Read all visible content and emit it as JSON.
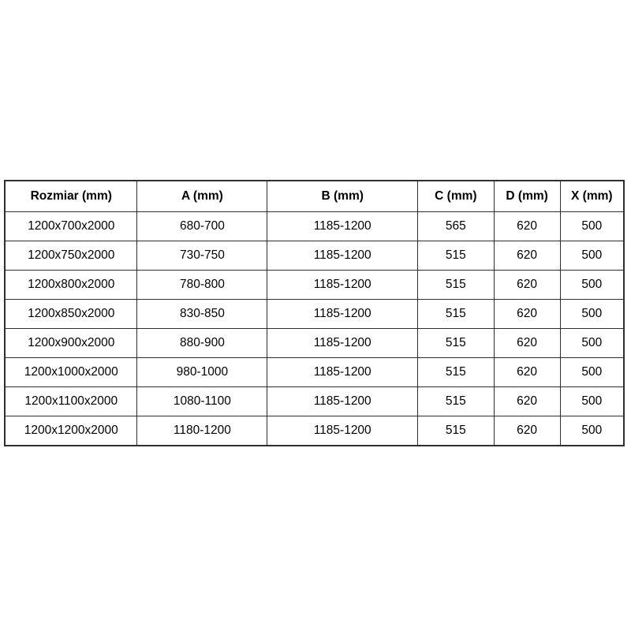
{
  "page": {
    "background_color": "#ffffff",
    "border_color": "#2f2f2f",
    "text_color": "#000000"
  },
  "table": {
    "headers": [
      "Rozmiar (mm)",
      "A (mm)",
      "B (mm)",
      "C (mm)",
      "D (mm)",
      "X (mm)"
    ],
    "rows": [
      [
        "1200x700x2000",
        "680-700",
        "1185-1200",
        "565",
        "620",
        "500"
      ],
      [
        "1200x750x2000",
        "730-750",
        "1185-1200",
        "515",
        "620",
        "500"
      ],
      [
        "1200x800x2000",
        "780-800",
        "1185-1200",
        "515",
        "620",
        "500"
      ],
      [
        "1200x850x2000",
        "830-850",
        "1185-1200",
        "515",
        "620",
        "500"
      ],
      [
        "1200x900x2000",
        "880-900",
        "1185-1200",
        "515",
        "620",
        "500"
      ],
      [
        "1200x1000x2000",
        "980-1000",
        "1185-1200",
        "515",
        "620",
        "500"
      ],
      [
        "1200x1100x2000",
        "1080-1100",
        "1185-1200",
        "515",
        "620",
        "500"
      ],
      [
        "1200x1200x2000",
        "1180-1200",
        "1185-1200",
        "515",
        "620",
        "500"
      ]
    ]
  }
}
